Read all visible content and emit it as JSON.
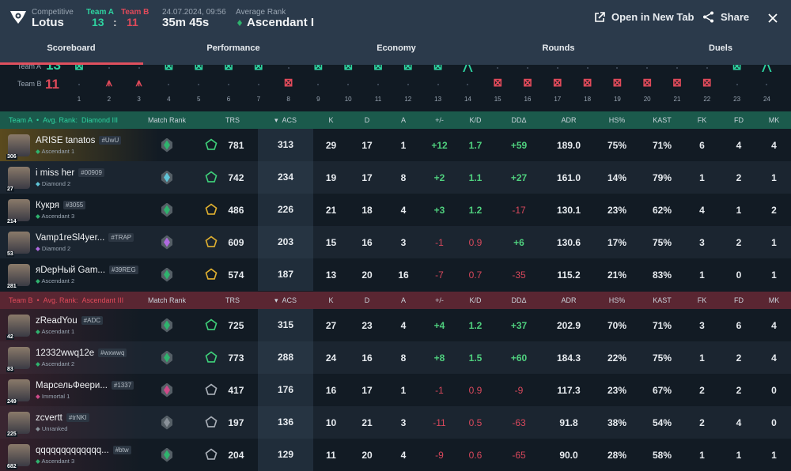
{
  "header": {
    "mode": "Competitive",
    "map": "Lotus",
    "team_a_label": "Team A",
    "team_b_label": "Team B",
    "score_a": "13",
    "score_sep": ":",
    "score_b": "11",
    "datetime": "24.07.2024, 09:56",
    "duration": "35m 45s",
    "avg_rank_label": "Average Rank",
    "avg_rank": "Ascendant I",
    "open_new_tab": "Open in New Tab",
    "share": "Share"
  },
  "tabs": [
    "Scoreboard",
    "Performance",
    "Economy",
    "Rounds",
    "Duels"
  ],
  "timeline": {
    "team_a_label": "Team A",
    "team_a_score": "13",
    "team_b_label": "Team B",
    "team_b_score": "11",
    "rounds": [
      {
        "n": "1",
        "w": "A",
        "t": "elim"
      },
      {
        "n": "2",
        "w": "B",
        "t": "defuse"
      },
      {
        "n": "3",
        "w": "B",
        "t": "defuse"
      },
      {
        "n": "4",
        "w": "A",
        "t": "elim"
      },
      {
        "n": "5",
        "w": "A",
        "t": "elim"
      },
      {
        "n": "6",
        "w": "A",
        "t": "elim"
      },
      {
        "n": "7",
        "w": "A",
        "t": "elim"
      },
      {
        "n": "8",
        "w": "B",
        "t": "elim"
      },
      {
        "n": "9",
        "w": "A",
        "t": "elim"
      },
      {
        "n": "10",
        "w": "A",
        "t": "elim"
      },
      {
        "n": "11",
        "w": "A",
        "t": "elim"
      },
      {
        "n": "12",
        "w": "A",
        "t": "elim"
      },
      {
        "n": "13",
        "w": "A",
        "t": "elim"
      },
      {
        "n": "14",
        "w": "A",
        "t": "spike"
      },
      {
        "n": "15",
        "w": "B",
        "t": "elim"
      },
      {
        "n": "16",
        "w": "B",
        "t": "elim"
      },
      {
        "n": "17",
        "w": "B",
        "t": "elim"
      },
      {
        "n": "18",
        "w": "B",
        "t": "elim"
      },
      {
        "n": "19",
        "w": "B",
        "t": "elim"
      },
      {
        "n": "20",
        "w": "B",
        "t": "elim"
      },
      {
        "n": "21",
        "w": "B",
        "t": "elim"
      },
      {
        "n": "22",
        "w": "B",
        "t": "elim"
      },
      {
        "n": "23",
        "w": "A",
        "t": "elim"
      },
      {
        "n": "24",
        "w": "A",
        "t": "spike"
      }
    ]
  },
  "columns": [
    "Match Rank",
    "TRS",
    "ACS",
    "K",
    "D",
    "A",
    "+/-",
    "K/D",
    "DDΔ",
    "ADR",
    "HS%",
    "KAST",
    "FK",
    "FD",
    "MK"
  ],
  "sort_icon": "▾",
  "colors": {
    "team_a": "#2ed3a0",
    "team_b": "#e04a5a",
    "pos": "#4fd07e",
    "neg": "#d8485c"
  },
  "teams": [
    {
      "label": "Team A",
      "avg_rank_label": "Avg. Rank:",
      "avg_rank": "Diamond III",
      "players": [
        {
          "name": "ARISE tanatos",
          "tag": "#UwU",
          "level": "306",
          "rank": "Ascendant 1",
          "rank_color": "#2fb36e",
          "trs": "781",
          "trs_tier": "green",
          "stats": [
            "313",
            "29",
            "17",
            "1",
            "+12",
            "1.7",
            "+59",
            "189.0",
            "75%",
            "71%",
            "6",
            "4",
            "4"
          ]
        },
        {
          "name": "i miss her",
          "tag": "#00909",
          "level": "27",
          "rank": "Diamond 2",
          "rank_color": "#5fc4d8",
          "trs": "742",
          "trs_tier": "green",
          "stats": [
            "234",
            "19",
            "17",
            "8",
            "+2",
            "1.1",
            "+27",
            "161.0",
            "14%",
            "79%",
            "1",
            "2",
            "1"
          ]
        },
        {
          "name": "Кукря",
          "tag": "#3055",
          "level": "214",
          "rank": "Ascendant 3",
          "rank_color": "#2fb36e",
          "trs": "486",
          "trs_tier": "gold",
          "stats": [
            "226",
            "21",
            "18",
            "4",
            "+3",
            "1.2",
            "-17",
            "130.1",
            "23%",
            "62%",
            "4",
            "1",
            "2"
          ]
        },
        {
          "name": "Vamp1reSl4yer...",
          "tag": "#TRAP",
          "level": "53",
          "rank": "Diamond 2",
          "rank_color": "#b06ae0",
          "trs": "609",
          "trs_tier": "gold",
          "stats": [
            "203",
            "15",
            "16",
            "3",
            "-1",
            "0.9",
            "+6",
            "130.6",
            "17%",
            "75%",
            "3",
            "2",
            "1"
          ]
        },
        {
          "name": "яDepНый Gam...",
          "tag": "#39REG",
          "level": "281",
          "rank": "Ascendant 2",
          "rank_color": "#2fb36e",
          "trs": "574",
          "trs_tier": "gold",
          "stats": [
            "187",
            "13",
            "20",
            "16",
            "-7",
            "0.7",
            "-35",
            "115.2",
            "21%",
            "83%",
            "1",
            "0",
            "1"
          ]
        }
      ]
    },
    {
      "label": "Team B",
      "avg_rank_label": "Avg. Rank:",
      "avg_rank": "Ascendant III",
      "players": [
        {
          "name": "zReadYou",
          "tag": "#ADC",
          "level": "42",
          "rank": "Ascendant 1",
          "rank_color": "#2fb36e",
          "trs": "725",
          "trs_tier": "green",
          "stats": [
            "315",
            "27",
            "23",
            "4",
            "+4",
            "1.2",
            "+37",
            "202.9",
            "70%",
            "71%",
            "3",
            "6",
            "4"
          ]
        },
        {
          "name": "12332wwq12e",
          "tag": "#wxwwq",
          "level": "83",
          "rank": "Ascendant 2",
          "rank_color": "#2fb36e",
          "trs": "773",
          "trs_tier": "green",
          "stats": [
            "288",
            "24",
            "16",
            "8",
            "+8",
            "1.5",
            "+60",
            "184.3",
            "22%",
            "75%",
            "1",
            "2",
            "4"
          ]
        },
        {
          "name": "МарсельФеери...",
          "tag": "#1337",
          "level": "249",
          "rank": "Immortal 1",
          "rank_color": "#d04a8a",
          "trs": "417",
          "trs_tier": "grey",
          "stats": [
            "176",
            "16",
            "17",
            "1",
            "-1",
            "0.9",
            "-9",
            "117.3",
            "23%",
            "67%",
            "2",
            "2",
            "0"
          ]
        },
        {
          "name": "zcvertt",
          "tag": "#trNKI",
          "level": "225",
          "rank": "Unranked",
          "rank_color": "#8a929a",
          "trs": "197",
          "trs_tier": "grey",
          "stats": [
            "136",
            "10",
            "21",
            "3",
            "-11",
            "0.5",
            "-63",
            "91.8",
            "38%",
            "54%",
            "2",
            "4",
            "0"
          ]
        },
        {
          "name": "qqqqqqqqqqqqq...",
          "tag": "#btw",
          "level": "682",
          "rank": "Ascendant 3",
          "rank_color": "#2fb36e",
          "trs": "204",
          "trs_tier": "grey",
          "stats": [
            "129",
            "11",
            "20",
            "4",
            "-9",
            "0.6",
            "-65",
            "90.0",
            "28%",
            "58%",
            "1",
            "1",
            "1"
          ]
        }
      ]
    }
  ]
}
